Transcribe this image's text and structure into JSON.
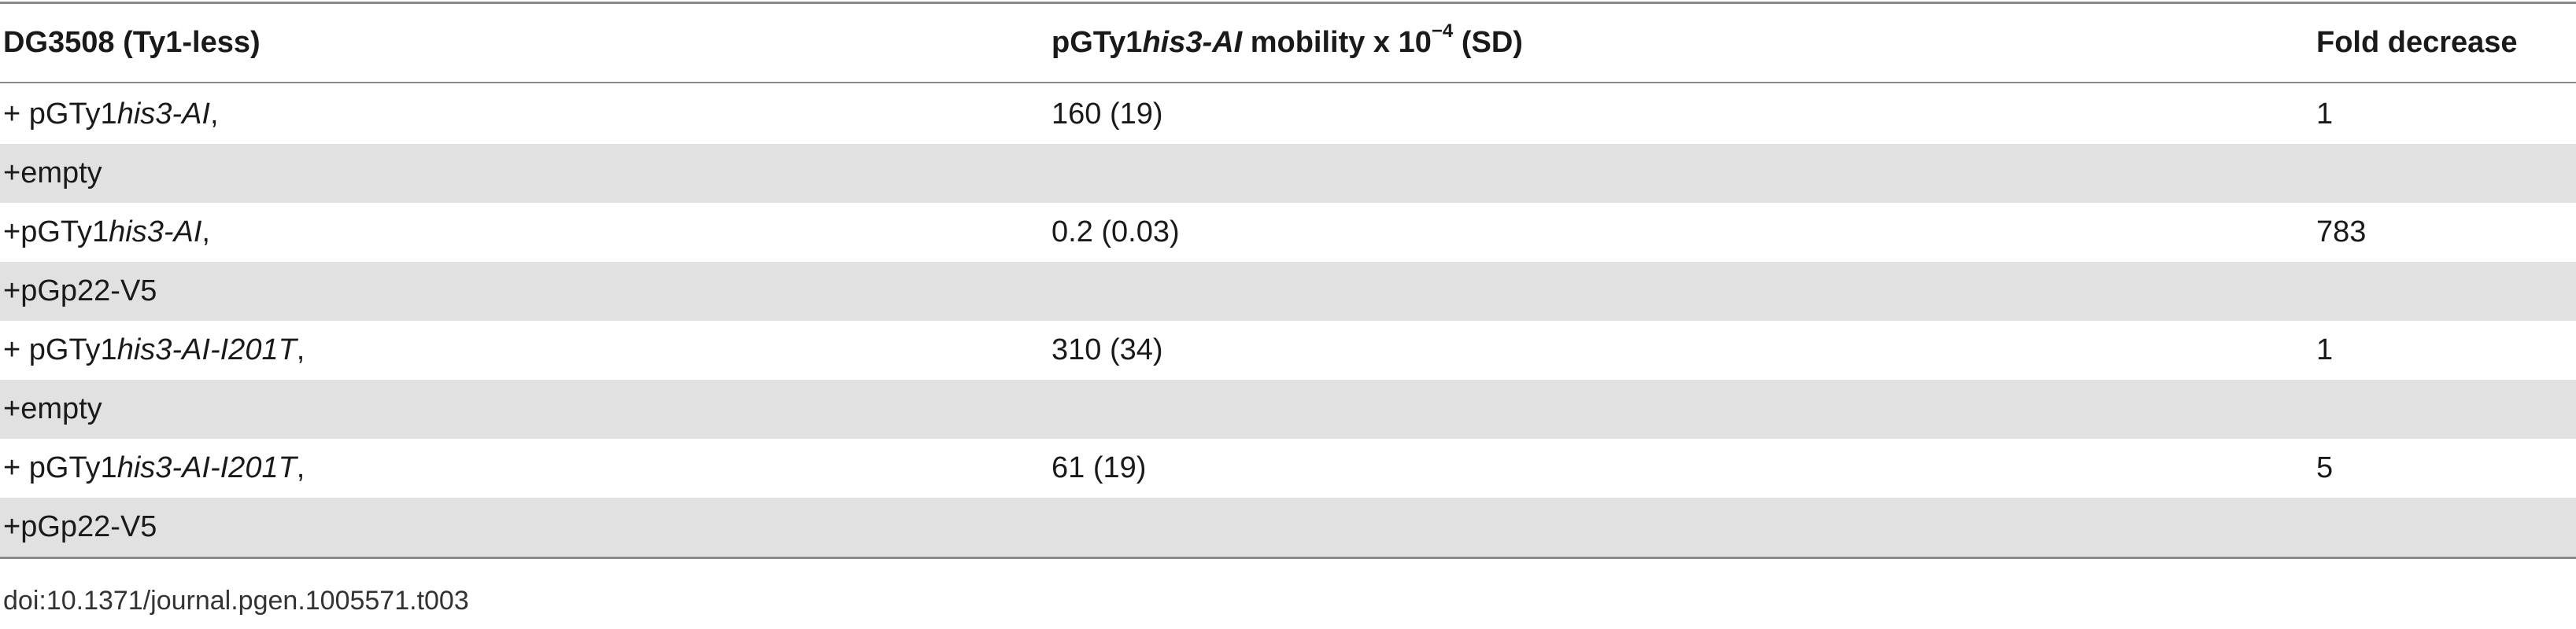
{
  "table": {
    "header": [
      [
        "DG3508 (Ty1-less)"
      ],
      [
        "pGTy1",
        "his3-AI",
        " mobility x 10",
        "−4",
        " (SD)"
      ],
      [
        "Fold decrease"
      ]
    ],
    "rows": [
      [
        [
          "+ pGTy1",
          "his3-AI",
          ","
        ],
        "160 (19)",
        "1"
      ],
      [
        [
          "+empty"
        ]
      ],
      [
        [
          "+pGTy1",
          "his3-AI",
          ","
        ],
        "0.2 (0.03)",
        "783"
      ],
      [
        [
          "+pGp22-V5"
        ]
      ],
      [
        [
          "+ pGTy1",
          "his3-AI-I201T",
          ","
        ],
        "310 (34)",
        "1"
      ],
      [
        [
          "+empty"
        ]
      ],
      [
        [
          "+ pGTy1",
          "his3-AI-I201T",
          ","
        ],
        "61 (19)",
        "5"
      ],
      [
        [
          "+pGp22-V5"
        ]
      ]
    ]
  },
  "footer": "doi:10.1371/journal.pgen.1005571.t003"
}
